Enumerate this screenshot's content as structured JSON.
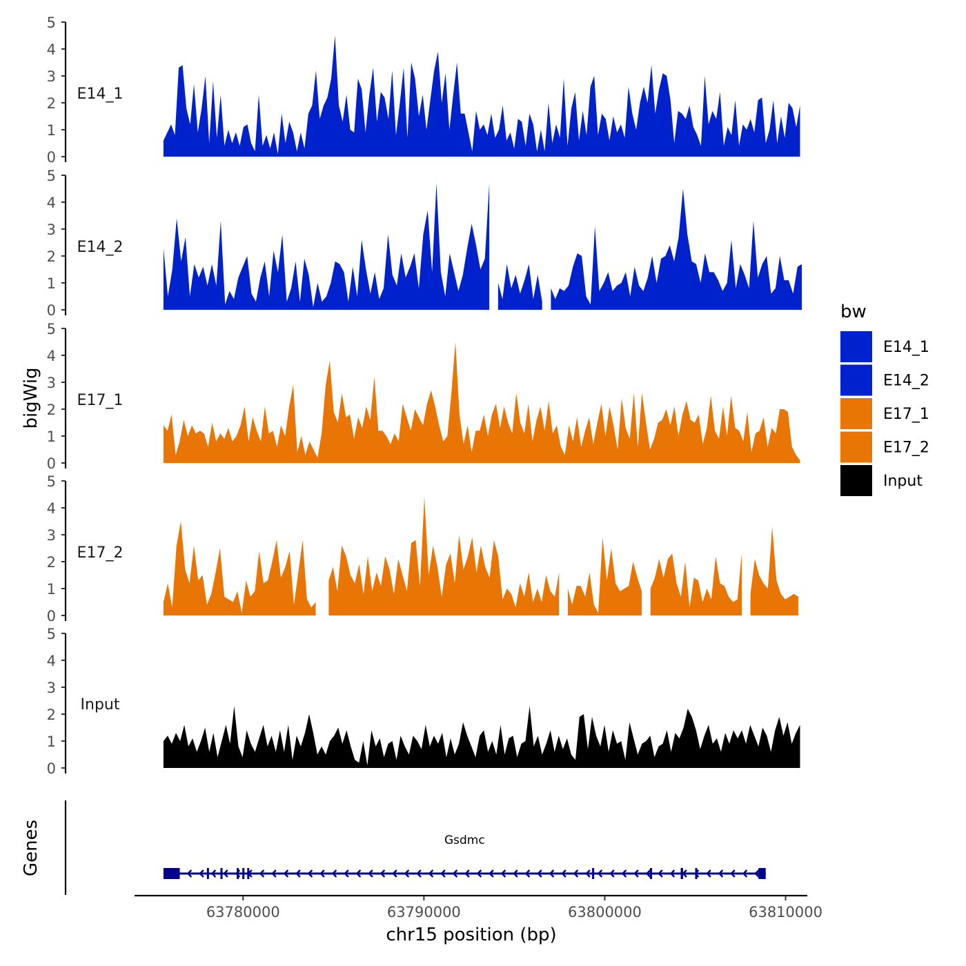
{
  "chart_data": {
    "type": "area",
    "xlabel": "chr15 position (bp)",
    "ylabel": "bigWig",
    "genes_label": "Genes",
    "xlim": [
      63774000,
      63811200
    ],
    "x_ticks": [
      63780000,
      63790000,
      63800000,
      63810000
    ],
    "x_tick_labels": [
      "63780000",
      "63790000",
      "63800000",
      "63810000"
    ],
    "ylim": [
      0,
      5
    ],
    "y_ticks": [
      0,
      1,
      2,
      3,
      4,
      5
    ],
    "y_tick_labels": [
      "0",
      "1",
      "2",
      "3",
      "4",
      "5"
    ],
    "legend": {
      "title": "bw",
      "position": "right",
      "entries": [
        {
          "label": "E14_1",
          "color": "#0022CC"
        },
        {
          "label": "E14_2",
          "color": "#0022CC"
        },
        {
          "label": "E17_1",
          "color": "#E87504"
        },
        {
          "label": "E17_2",
          "color": "#E87504"
        },
        {
          "label": "Input",
          "color": "#000000"
        }
      ]
    },
    "series": [
      {
        "name": "E14_1",
        "color": "#0022CC",
        "x_start": 63775600,
        "x_end": 63810800,
        "values": [
          0.6,
          0.9,
          1.2,
          0.8,
          3.3,
          3.4,
          1.8,
          1.2,
          2.7,
          0.9,
          1.8,
          3.0,
          0.5,
          2.8,
          0.7,
          2.3,
          0.4,
          1.0,
          0.5,
          0.9,
          0.4,
          1.1,
          1.2,
          0.5,
          0.2,
          2.3,
          0.4,
          0.8,
          0.3,
          0.9,
          0.1,
          1.6,
          0.5,
          1.3,
          0.9,
          0.2,
          0.9,
          0.3,
          1.6,
          1.9,
          3.2,
          1.4,
          1.9,
          2.2,
          2.9,
          4.5,
          1.9,
          1.3,
          2.3,
          1.0,
          0.9,
          2.9,
          2.5,
          0.9,
          2.3,
          3.3,
          1.3,
          2.4,
          2.2,
          1.4,
          3.2,
          0.8,
          2.0,
          3.3,
          0.7,
          3.5,
          2.9,
          1.5,
          2.3,
          1.0,
          2.1,
          3.2,
          3.9,
          2.0,
          3.1,
          1.0,
          2.3,
          3.5,
          1.6,
          1.6,
          0.9,
          0.2,
          1.7,
          1.0,
          1.2,
          0.8,
          1.6,
          0.7,
          1.0,
          1.9,
          0.6,
          0.9,
          0.3,
          1.4,
          1.3,
          0.4,
          1.6,
          1.2,
          0.2,
          1.0,
          0.2,
          2.0,
          0.5,
          1.2,
          0.7,
          2.9,
          0.4,
          1.8,
          2.4,
          0.6,
          1.7,
          0.8,
          2.6,
          3.0,
          0.8,
          1.6,
          1.4,
          0.6,
          1.5,
          0.9,
          1.2,
          0.7,
          2.6,
          1.6,
          1.0,
          2.0,
          2.6,
          2.0,
          3.4,
          1.6,
          2.5,
          3.1,
          3.0,
          2.1,
          0.5,
          1.7,
          1.6,
          1.4,
          1.9,
          1.1,
          0.8,
          0.4,
          3.0,
          1.2,
          1.7,
          1.4,
          2.4,
          0.4,
          1.1,
          0.8,
          2.1,
          0.4,
          1.2,
          1.0,
          1.4,
          0.9,
          2.1,
          2.2,
          0.5,
          1.0,
          2.1,
          0.5,
          1.5,
          0.7,
          2.0,
          1.8,
          1.1,
          1.9
        ],
        "gaps": []
      },
      {
        "name": "E14_2",
        "color": "#0022CC",
        "x_start": 63775600,
        "x_end": 63810900,
        "values": [
          2.3,
          0.5,
          1.5,
          3.4,
          1.8,
          2.7,
          0.5,
          1.7,
          1.2,
          1.6,
          0.9,
          1.7,
          0.9,
          3.3,
          0.2,
          0.7,
          0.4,
          1.2,
          1.6,
          2.0,
          0.6,
          0.3,
          1.2,
          1.8,
          0.5,
          2.2,
          1.4,
          2.8,
          0.3,
          0.8,
          1.8,
          0.3,
          1.9,
          1.3,
          0.1,
          1.0,
          0.3,
          0.5,
          1.0,
          1.8,
          1.7,
          1.4,
          0.3,
          1.6,
          0.5,
          2.6,
          1.5,
          0.6,
          1.4,
          0.4,
          0.8,
          2.8,
          1.3,
          0.9,
          2.1,
          1.2,
          1.6,
          2.1,
          0.8,
          2.8,
          3.7,
          1.4,
          4.7,
          1.4,
          0.5,
          2.1,
          1.4,
          0.7,
          1.3,
          2.3,
          3.2,
          2.4,
          1.5,
          1.9,
          4.7,
          1.8,
          1.0,
          0.4,
          1.7,
          0.8,
          1.3,
          0.6,
          1.1,
          1.7,
          0.4,
          1.3,
          0.3,
          1.2,
          0.8,
          0.4,
          0.8,
          0.7,
          0.9,
          1.6,
          2.1,
          2.0,
          0.5,
          0.2,
          3.1,
          0.7,
          1.0,
          1.4,
          0.7,
          0.9,
          1.0,
          1.4,
          0.5,
          1.6,
          0.9,
          0.7,
          1.2,
          2.0,
          1.0,
          1.9,
          2.0,
          2.4,
          1.8,
          2.7,
          4.5,
          2.8,
          1.8,
          1.7,
          1.0,
          2.1,
          1.4,
          1.4,
          1.1,
          0.7,
          1.0,
          2.6,
          0.8,
          1.7,
          1.3,
          0.8,
          3.3,
          1.2,
          1.7,
          2.0,
          0.6,
          0.8,
          2.0,
          1.1,
          1.1,
          0.6,
          1.6,
          1.7
        ],
        "gaps": [
          [
            63793800,
            63794100
          ],
          [
            63796600,
            63796800
          ]
        ]
      },
      {
        "name": "E17_1",
        "color": "#E87504",
        "x_start": 63775600,
        "x_end": 63810800,
        "values": [
          1.4,
          1.2,
          1.8,
          0.3,
          0.8,
          1.6,
          1.0,
          1.4,
          1.1,
          1.2,
          1.1,
          0.6,
          1.5,
          0.8,
          1.1,
          0.9,
          1.3,
          0.8,
          1.0,
          1.4,
          2.1,
          0.8,
          1.7,
          1.2,
          0.8,
          2.1,
          1.1,
          1.2,
          0.6,
          1.4,
          1.0,
          2.1,
          2.9,
          0.4,
          1.0,
          0.3,
          0.8,
          0.5,
          0.2,
          1.1,
          2.9,
          3.8,
          1.9,
          1.5,
          2.6,
          1.7,
          1.8,
          0.9,
          1.7,
          1.3,
          2.1,
          1.6,
          3.2,
          1.2,
          1.2,
          1.0,
          0.7,
          1.1,
          0.8,
          2.2,
          1.7,
          1.2,
          2.0,
          1.7,
          1.4,
          2.2,
          2.7,
          2.1,
          1.4,
          0.8,
          1.0,
          2.6,
          4.5,
          1.8,
          0.7,
          1.4,
          0.4,
          1.2,
          1.2,
          1.8,
          1.0,
          1.8,
          2.2,
          1.3,
          2.1,
          1.5,
          1.1,
          2.6,
          1.5,
          1.1,
          2.2,
          0.8,
          1.6,
          2.1,
          1.2,
          2.3,
          1.1,
          1.4,
          0.6,
          0.3,
          1.4,
          0.8,
          1.7,
          0.6,
          1.2,
          1.7,
          0.7,
          1.5,
          2.2,
          1.0,
          2.1,
          1.4,
          0.5,
          2.4,
          1.3,
          0.9,
          2.6,
          0.6,
          2.6,
          1.5,
          0.5,
          0.9,
          1.5,
          1.6,
          2.0,
          1.4,
          2.1,
          1.0,
          1.8,
          2.3,
          1.6,
          1.5,
          1.8,
          0.7,
          1.3,
          2.5,
          1.2,
          0.9,
          2.1,
          1.0,
          2.5,
          1.3,
          1.2,
          0.8,
          1.9,
          0.4,
          1.1,
          1.2,
          1.7,
          0.6,
          1.3,
          1.1,
          2.0,
          2.0,
          1.9,
          0.6,
          0.3,
          0.1
        ],
        "gaps": []
      },
      {
        "name": "E17_2",
        "color": "#E87504",
        "x_start": 63775600,
        "x_end": 63810700,
        "values": [
          0.5,
          1.2,
          0.3,
          2.6,
          3.5,
          1.7,
          1.2,
          2.6,
          1.3,
          1.5,
          0.4,
          0.8,
          1.6,
          2.5,
          0.7,
          0.6,
          0.5,
          0.9,
          0.1,
          1.3,
          0.7,
          0.9,
          2.4,
          1.2,
          1.3,
          2.0,
          2.8,
          1.4,
          1.8,
          2.4,
          0.4,
          1.6,
          2.8,
          0.6,
          0.3,
          0.5,
          0.9,
          1.1,
          1.3,
          1.8,
          0.9,
          2.6,
          2.2,
          1.5,
          1.2,
          1.9,
          0.8,
          2.2,
          0.9,
          1.6,
          1.1,
          2.2,
          1.7,
          0.8,
          2.1,
          1.5,
          0.9,
          2.7,
          2.8,
          1.1,
          4.4,
          1.5,
          2.6,
          1.8,
          0.7,
          1.9,
          2.3,
          1.2,
          3.0,
          1.7,
          2.2,
          2.9,
          1.6,
          2.6,
          1.8,
          1.4,
          2.8,
          2.2,
          0.6,
          1.0,
          0.8,
          0.3,
          1.2,
          0.7,
          1.6,
          0.5,
          1.0,
          0.5,
          1.5,
          0.9,
          0.7,
          1.6,
          1.9,
          1.0,
          0.4,
          1.1,
          1.1,
          0.7,
          1.6,
          0.4,
          0.1,
          2.9,
          1.3,
          2.5,
          1.2,
          0.9,
          1.0,
          1.1,
          2.0,
          1.4,
          0.9,
          1.6,
          1.0,
          1.4,
          2.1,
          1.4,
          2.1,
          2.3,
          1.2,
          0.7,
          2.0,
          0.3,
          1.4,
          1.3,
          0.5,
          1.0,
          0.6,
          2.2,
          1.2,
          1.1,
          0.7,
          0.5,
          0.6,
          2.3,
          0.9,
          0.8,
          2.1,
          1.5,
          1.2,
          1.0,
          3.3,
          1.3,
          0.8,
          0.6,
          0.7,
          0.8,
          0.7
        ],
        "gaps": [
          [
            63784100,
            63784500
          ],
          [
            63797500,
            63797800
          ],
          [
            63802200,
            63802400
          ],
          [
            63807600,
            63807900
          ]
        ]
      },
      {
        "name": "Input",
        "color": "#000000",
        "x_start": 63775600,
        "x_end": 63810800,
        "values": [
          1.0,
          1.2,
          0.9,
          1.3,
          1.0,
          1.6,
          0.8,
          1.1,
          0.6,
          1.0,
          1.5,
          0.6,
          1.3,
          0.4,
          1.0,
          1.6,
          0.9,
          2.3,
          0.8,
          0.4,
          1.4,
          0.9,
          0.6,
          1.1,
          1.6,
          0.8,
          1.2,
          0.6,
          1.4,
          0.6,
          1.6,
          0.3,
          1.2,
          0.8,
          1.3,
          2.0,
          1.3,
          0.5,
          0.8,
          0.5,
          1.0,
          1.2,
          1.5,
          0.9,
          1.4,
          0.8,
          0.3,
          0.2,
          1.0,
          0.1,
          1.4,
          0.8,
          1.1,
          0.4,
          0.9,
          1.0,
          0.3,
          1.2,
          0.8,
          0.5,
          1.2,
          1.0,
          0.7,
          1.6,
          0.8,
          1.2,
          0.9,
          1.3,
          0.4,
          1.1,
          0.5,
          0.9,
          1.7,
          1.2,
          0.8,
          0.4,
          1.2,
          1.4,
          0.6,
          1.0,
          0.5,
          1.6,
          0.5,
          1.1,
          1.2,
          0.4,
          0.9,
          1.0,
          2.3,
          0.8,
          1.2,
          0.5,
          0.9,
          1.4,
          0.6,
          1.2,
          0.7,
          1.1,
          0.5,
          0.3,
          1.9,
          2.0,
          0.7,
          1.9,
          1.2,
          0.8,
          1.6,
          0.6,
          1.4,
          0.9,
          1.0,
          0.3,
          1.7,
          1.1,
          0.5,
          0.9,
          1.0,
          1.2,
          0.4,
          0.8,
          0.9,
          1.4,
          0.6,
          1.3,
          1.1,
          1.5,
          2.2,
          1.9,
          1.4,
          0.7,
          1.2,
          1.6,
          0.9,
          1.1,
          0.6,
          1.3,
          0.9,
          1.4,
          1.1,
          1.4,
          0.9,
          1.6,
          1.2,
          0.8,
          1.5,
          1.2,
          0.6,
          1.4,
          1.9,
          1.2,
          1.7,
          0.9,
          1.3,
          1.6
        ],
        "gaps": []
      }
    ],
    "genes": [
      {
        "name": "Gsdmc",
        "start": 63775600,
        "end": 63808900,
        "strand": "-",
        "color": "#00008B",
        "exons": [
          [
            63775600,
            63776500
          ],
          [
            63778000,
            63778080
          ],
          [
            63778750,
            63778830
          ],
          [
            63779650,
            63779720
          ],
          [
            63779960,
            63780040
          ],
          [
            63780230,
            63780290
          ],
          [
            63799300,
            63799380
          ],
          [
            63802500,
            63802580
          ],
          [
            63804200,
            63804330
          ],
          [
            63805000,
            63805100
          ],
          [
            63808500,
            63808900
          ]
        ]
      }
    ]
  }
}
